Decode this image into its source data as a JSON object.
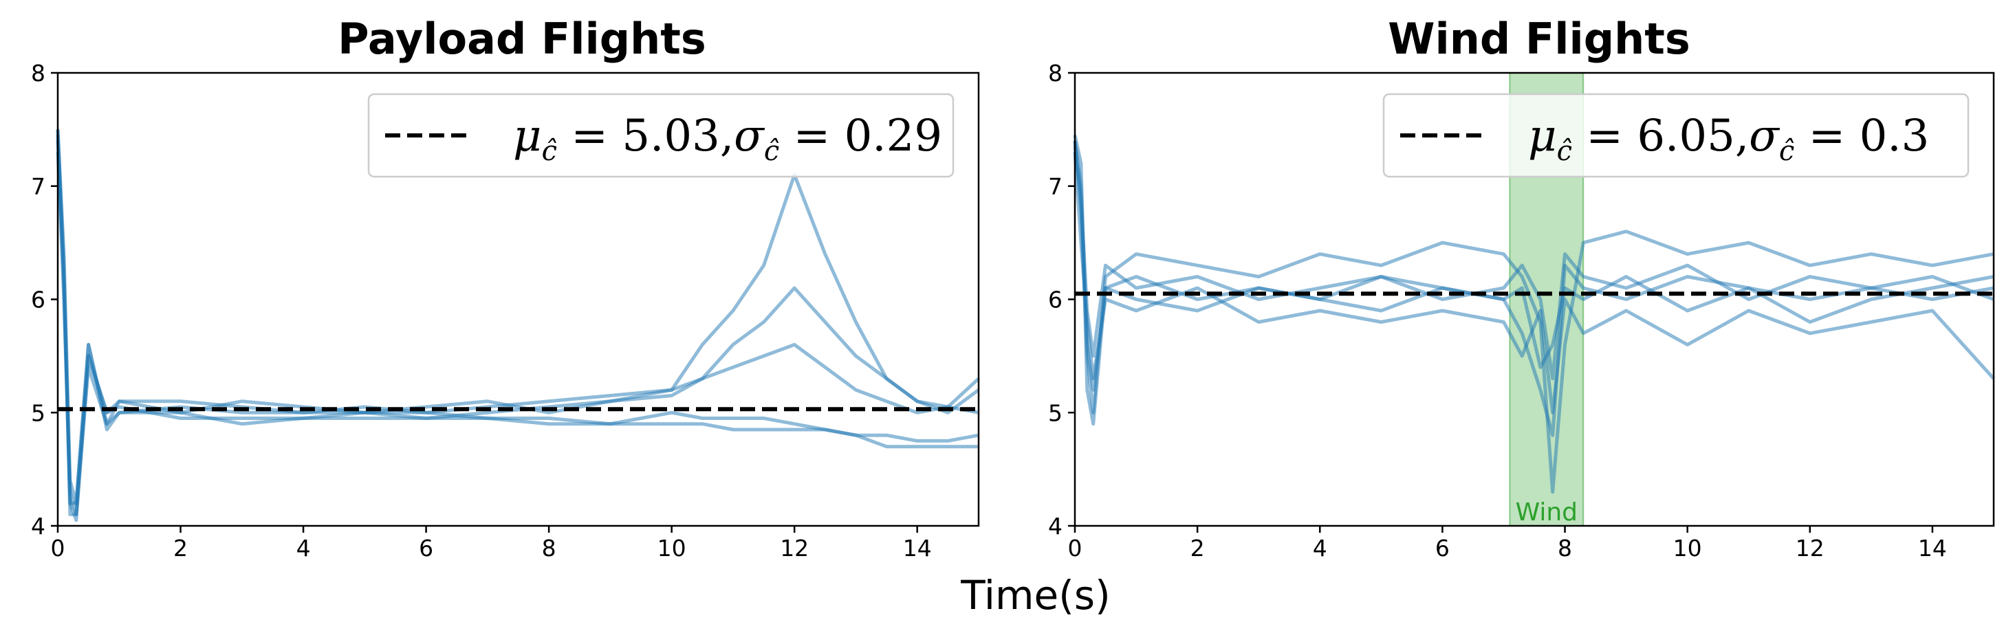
{
  "figure": {
    "xlabel": "Time(s)"
  },
  "chart_data": [
    {
      "type": "line",
      "title": "Payload Flights",
      "xlabel": "Time(s)",
      "ylabel": "",
      "xlim": [
        0,
        15
      ],
      "ylim": [
        4,
        8
      ],
      "xticks": [
        "0",
        "2",
        "4",
        "6",
        "8",
        "10",
        "12",
        "14"
      ],
      "yticks": [
        "4",
        "5",
        "6",
        "7",
        "8"
      ],
      "series_color": "#1f77b4",
      "mean_line": {
        "value": 5.03,
        "color": "#000000",
        "style": "dashed"
      },
      "legend": {
        "mu": "5.03",
        "sigma": "0.29",
        "placement": "top-right"
      },
      "series": [
        {
          "x": [
            0,
            0.1,
            0.2,
            0.3,
            0.5,
            0.8,
            1,
            2,
            3,
            4,
            5,
            6,
            7,
            8,
            9,
            10,
            10.5,
            11,
            11.5,
            12,
            12.5,
            13,
            13.5,
            14,
            14.5,
            15
          ],
          "values": [
            7.5,
            6.3,
            4.2,
            4.2,
            5.6,
            4.9,
            5.1,
            5.1,
            5.05,
            5.0,
            5.05,
            5.0,
            5.05,
            5.1,
            5.15,
            5.2,
            5.6,
            5.9,
            6.3,
            7.1,
            6.4,
            5.8,
            5.3,
            5.1,
            5.0,
            5.2
          ]
        },
        {
          "x": [
            0,
            0.1,
            0.2,
            0.3,
            0.5,
            0.8,
            1,
            2,
            3,
            4,
            5,
            6,
            7,
            8,
            9,
            10,
            10.5,
            11,
            11.5,
            12,
            12.5,
            13,
            13.5,
            14,
            14.5,
            15
          ],
          "values": [
            7.4,
            6.2,
            4.1,
            4.1,
            5.5,
            5.0,
            5.1,
            5.0,
            5.1,
            5.05,
            5.0,
            5.05,
            5.1,
            5.0,
            5.1,
            5.2,
            5.3,
            5.6,
            5.8,
            6.1,
            5.8,
            5.5,
            5.3,
            5.1,
            5.05,
            5.0
          ]
        },
        {
          "x": [
            0,
            0.1,
            0.2,
            0.3,
            0.5,
            0.8,
            1,
            2,
            3,
            4,
            5,
            6,
            7,
            8,
            9,
            10,
            10.5,
            11,
            11.5,
            12,
            12.5,
            13,
            13.5,
            14,
            14.5,
            15
          ],
          "values": [
            7.3,
            6.0,
            4.3,
            4.1,
            5.4,
            4.9,
            5.0,
            5.05,
            5.0,
            5.0,
            5.0,
            4.95,
            5.0,
            5.05,
            5.1,
            5.15,
            5.3,
            5.4,
            5.5,
            5.6,
            5.4,
            5.2,
            5.1,
            5.0,
            5.05,
            5.3
          ]
        },
        {
          "x": [
            0,
            0.1,
            0.2,
            0.3,
            0.5,
            0.8,
            1,
            2,
            3,
            4,
            5,
            6,
            7,
            8,
            9,
            10,
            10.5,
            11,
            11.5,
            12,
            12.5,
            13,
            13.5,
            14,
            14.5,
            15
          ],
          "values": [
            7.45,
            6.1,
            4.2,
            4.05,
            5.5,
            5.0,
            5.05,
            4.95,
            4.95,
            4.95,
            4.95,
            4.95,
            4.95,
            4.95,
            4.9,
            4.9,
            4.9,
            4.85,
            4.85,
            4.85,
            4.85,
            4.8,
            4.8,
            4.75,
            4.75,
            4.8
          ]
        },
        {
          "x": [
            0,
            0.1,
            0.2,
            0.3,
            0.5,
            0.8,
            1,
            2,
            3,
            4,
            5,
            6,
            7,
            8,
            9,
            10,
            10.5,
            11,
            11.5,
            12,
            12.5,
            13,
            13.5,
            14,
            14.5,
            15
          ],
          "values": [
            7.5,
            6.4,
            4.4,
            4.2,
            5.6,
            4.85,
            5.0,
            5.0,
            4.9,
            4.95,
            5.0,
            5.0,
            4.95,
            4.9,
            4.9,
            5.0,
            4.95,
            4.95,
            4.95,
            4.9,
            4.85,
            4.8,
            4.7,
            4.7,
            4.7,
            4.7
          ]
        }
      ]
    },
    {
      "type": "line",
      "title": "Wind Flights",
      "xlabel": "Time(s)",
      "ylabel": "",
      "xlim": [
        0,
        15
      ],
      "ylim": [
        4,
        8
      ],
      "xticks": [
        "0",
        "2",
        "4",
        "6",
        "8",
        "10",
        "12",
        "14"
      ],
      "yticks": [
        "4",
        "5",
        "6",
        "7",
        "8"
      ],
      "series_color": "#1f77b4",
      "mean_line": {
        "value": 6.05,
        "color": "#000000",
        "style": "dashed"
      },
      "legend": {
        "mu": "6.05",
        "sigma": "0.3",
        "placement": "top-right"
      },
      "shaded_region": {
        "x_start": 7.1,
        "x_end": 8.3,
        "label": "Wind",
        "color": "#2ca02c"
      },
      "series": [
        {
          "x": [
            0,
            0.1,
            0.2,
            0.3,
            0.5,
            1,
            2,
            3,
            4,
            5,
            6,
            7,
            7.3,
            7.6,
            7.8,
            8.0,
            8.3,
            9,
            10,
            11,
            12,
            13,
            14,
            15
          ],
          "values": [
            7.45,
            7.2,
            5.2,
            4.9,
            6.1,
            6.2,
            6.0,
            6.1,
            6.0,
            6.2,
            6.1,
            6.0,
            5.7,
            5.2,
            4.8,
            6.3,
            6.1,
            6.0,
            6.2,
            6.1,
            6.0,
            6.1,
            6.0,
            6.1
          ]
        },
        {
          "x": [
            0,
            0.1,
            0.2,
            0.3,
            0.5,
            1,
            2,
            3,
            4,
            5,
            6,
            7,
            7.3,
            7.6,
            7.8,
            8.0,
            8.3,
            9,
            10,
            11,
            12,
            13,
            14,
            15
          ],
          "values": [
            7.4,
            6.8,
            5.5,
            5.0,
            6.2,
            6.4,
            6.3,
            6.2,
            6.4,
            6.3,
            6.5,
            6.4,
            6.2,
            5.8,
            4.3,
            5.6,
            6.5,
            6.6,
            6.4,
            6.5,
            6.3,
            6.4,
            6.3,
            6.4
          ]
        },
        {
          "x": [
            0,
            0.1,
            0.2,
            0.3,
            0.5,
            1,
            2,
            3,
            4,
            5,
            6,
            7,
            7.3,
            7.6,
            7.8,
            8.0,
            8.3,
            9,
            10,
            11,
            12,
            13,
            14,
            15
          ],
          "values": [
            7.3,
            6.5,
            5.8,
            5.3,
            6.0,
            5.9,
            6.1,
            5.8,
            5.9,
            5.8,
            5.9,
            5.8,
            5.5,
            5.9,
            5.0,
            6.0,
            5.7,
            5.9,
            5.6,
            5.9,
            5.7,
            5.8,
            5.9,
            5.3
          ]
        },
        {
          "x": [
            0,
            0.1,
            0.2,
            0.3,
            0.5,
            1,
            2,
            3,
            4,
            5,
            6,
            7,
            7.3,
            7.6,
            7.8,
            8.0,
            8.3,
            9,
            10,
            11,
            12,
            13,
            14,
            15
          ],
          "values": [
            7.35,
            6.9,
            5.9,
            5.5,
            6.3,
            6.1,
            6.2,
            6.0,
            6.1,
            6.2,
            6.0,
            6.1,
            6.3,
            6.0,
            5.3,
            6.4,
            6.2,
            6.1,
            6.3,
            6.0,
            6.2,
            6.1,
            6.2,
            6.0
          ]
        },
        {
          "x": [
            0,
            0.1,
            0.2,
            0.3,
            0.5,
            1,
            2,
            3,
            4,
            5,
            6,
            7,
            7.3,
            7.6,
            7.8,
            8.0,
            8.3,
            9,
            10,
            11,
            12,
            13,
            14,
            15
          ],
          "values": [
            7.4,
            7.0,
            5.6,
            5.2,
            6.1,
            6.0,
            5.9,
            6.1,
            6.0,
            5.9,
            6.1,
            6.0,
            6.1,
            5.4,
            5.6,
            6.1,
            6.0,
            6.2,
            5.9,
            6.1,
            5.8,
            6.0,
            6.1,
            6.2
          ]
        }
      ]
    }
  ]
}
